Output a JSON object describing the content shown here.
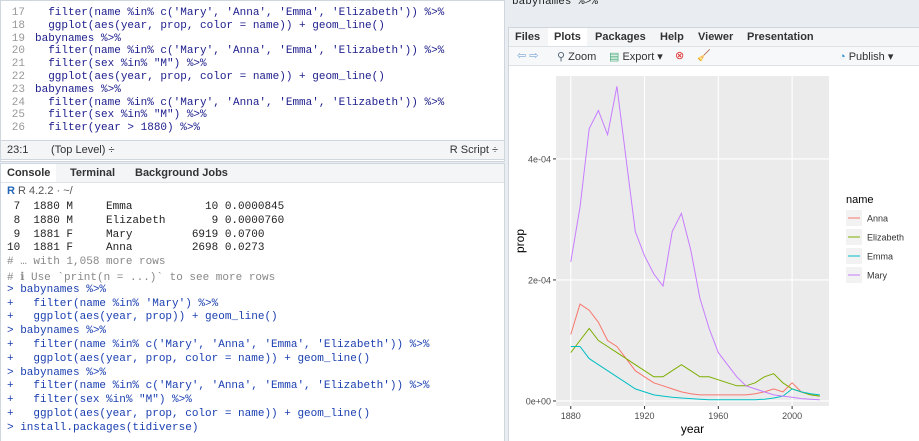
{
  "editor": {
    "lines": [
      {
        "num": "17",
        "code": "  filter(name %in% c('Mary', 'Anna', 'Emma', 'Elizabeth')) %>%"
      },
      {
        "num": "18",
        "code": "  ggplot(aes(year, prop, color = name)) + geom_line()"
      },
      {
        "num": "19",
        "code": "babynames %>%"
      },
      {
        "num": "20",
        "code": "  filter(name %in% c('Mary', 'Anna', 'Emma', 'Elizabeth')) %>%"
      },
      {
        "num": "21",
        "code": "  filter(sex %in% \"M\") %>%"
      },
      {
        "num": "22",
        "code": "  ggplot(aes(year, prop, color = name)) + geom_line()"
      },
      {
        "num": "23",
        "code": "babynames %>%"
      },
      {
        "num": "24",
        "code": "  filter(name %in% c('Mary', 'Anna', 'Emma', 'Elizabeth')) %>%"
      },
      {
        "num": "25",
        "code": "  filter(sex %in% \"M\") %>%"
      },
      {
        "num": "26",
        "code": "  filter(year > 1880) %>%"
      }
    ],
    "status": {
      "position": "23:1",
      "scope": "(Top Level) ÷",
      "type": "R Script ÷"
    }
  },
  "console": {
    "tabs": [
      "Console",
      "Terminal",
      "Background Jobs"
    ],
    "version": "R 4.2.2 · ~/",
    "lines": [
      " 7  1880 M     Emma           10 0.0000845",
      " 8  1880 M     Elizabeth       9 0.0000760",
      " 9  1881 F     Mary         6919 0.0700",
      "10  1881 F     Anna         2698 0.0273",
      "# … with 1,058 more rows",
      "# ℹ Use `print(n = ...)` to see more rows",
      "> babynames %>%",
      "+   filter(name %in% 'Mary') %>%",
      "+   ggplot(aes(year, prop)) + geom_line()",
      "> babynames %>%",
      "+   filter(name %in% c('Mary', 'Anna', 'Emma', 'Elizabeth')) %>%",
      "+   ggplot(aes(year, prop, color = name)) + geom_line()",
      "> babynames %>%",
      "+   filter(name %in% c('Mary', 'Anna', 'Emma', 'Elizabeth')) %>%",
      "+   filter(sex %in% \"M\") %>%",
      "+   ggplot(aes(year, prop, color = name)) + geom_line()",
      "> install.packages(tidiverse)"
    ]
  },
  "viewer": {
    "top_code": "babynames %>%",
    "tabs": [
      "Files",
      "Plots",
      "Packages",
      "Help",
      "Viewer",
      "Presentation"
    ],
    "zoom": "Zoom",
    "export": "Export ▾",
    "publish": "Publish ▾"
  },
  "chart_data": {
    "type": "line",
    "x_label": "year",
    "y_label": "prop",
    "legend_title": "name",
    "x": [
      1880,
      1885,
      1890,
      1895,
      1900,
      1905,
      1910,
      1915,
      1920,
      1925,
      1930,
      1935,
      1940,
      1945,
      1950,
      1955,
      1960,
      1965,
      1970,
      1975,
      1980,
      1985,
      1990,
      1995,
      2000,
      2005,
      2010,
      2015
    ],
    "series": [
      {
        "name": "Anna",
        "color": "#F8766D",
        "values": [
          0.00011,
          0.00016,
          0.00015,
          0.00013,
          0.0001,
          9e-05,
          7e-05,
          5e-05,
          4e-05,
          3e-05,
          2.5e-05,
          2e-05,
          1.5e-05,
          1.2e-05,
          1e-05,
          1e-05,
          1e-05,
          1e-05,
          1e-05,
          1e-05,
          1.2e-05,
          1.5e-05,
          2e-05,
          1.5e-05,
          3e-05,
          1.5e-05,
          1e-05,
          8e-06
        ]
      },
      {
        "name": "Elizabeth",
        "color": "#7CAE00",
        "values": [
          8e-05,
          0.0001,
          0.00012,
          0.0001,
          9e-05,
          8e-05,
          7e-05,
          6e-05,
          5e-05,
          4e-05,
          4e-05,
          5e-05,
          6e-05,
          5e-05,
          4e-05,
          4e-05,
          3.5e-05,
          3e-05,
          2.5e-05,
          2.5e-05,
          3e-05,
          4e-05,
          4.5e-05,
          3e-05,
          2e-05,
          1.5e-05,
          1e-05,
          8e-06
        ]
      },
      {
        "name": "Emma",
        "color": "#00BFC4",
        "values": [
          9e-05,
          9e-05,
          7e-05,
          6e-05,
          5e-05,
          4e-05,
          3e-05,
          2e-05,
          1.5e-05,
          1e-05,
          8e-06,
          6e-06,
          5e-06,
          4e-06,
          3e-06,
          2e-06,
          2e-06,
          2e-06,
          2e-06,
          2e-06,
          2e-06,
          3e-06,
          5e-06,
          8e-06,
          2e-05,
          1.5e-05,
          1.2e-05,
          1e-05
        ]
      },
      {
        "name": "Mary",
        "color": "#C77CFF",
        "values": [
          0.00023,
          0.00032,
          0.00045,
          0.00048,
          0.00044,
          0.00052,
          0.0004,
          0.00028,
          0.00024,
          0.00021,
          0.00019,
          0.00028,
          0.00031,
          0.00025,
          0.00017,
          0.00012,
          8e-05,
          6e-05,
          4e-05,
          2.5e-05,
          2e-05,
          1.5e-05,
          1e-05,
          8e-06,
          6e-06,
          4e-06,
          3e-06,
          2e-06
        ]
      }
    ],
    "xlim": [
      1872,
      2020
    ],
    "ylim": [
      -8.3e-06,
      0.000537
    ],
    "xticks": [
      1880,
      1920,
      1960,
      2000
    ],
    "yticks": [
      {
        "value": 0,
        "label": "0e+00"
      },
      {
        "value": 0.0002,
        "label": "2e-04"
      },
      {
        "value": 0.0004,
        "label": "4e-04"
      }
    ],
    "grid": true
  }
}
